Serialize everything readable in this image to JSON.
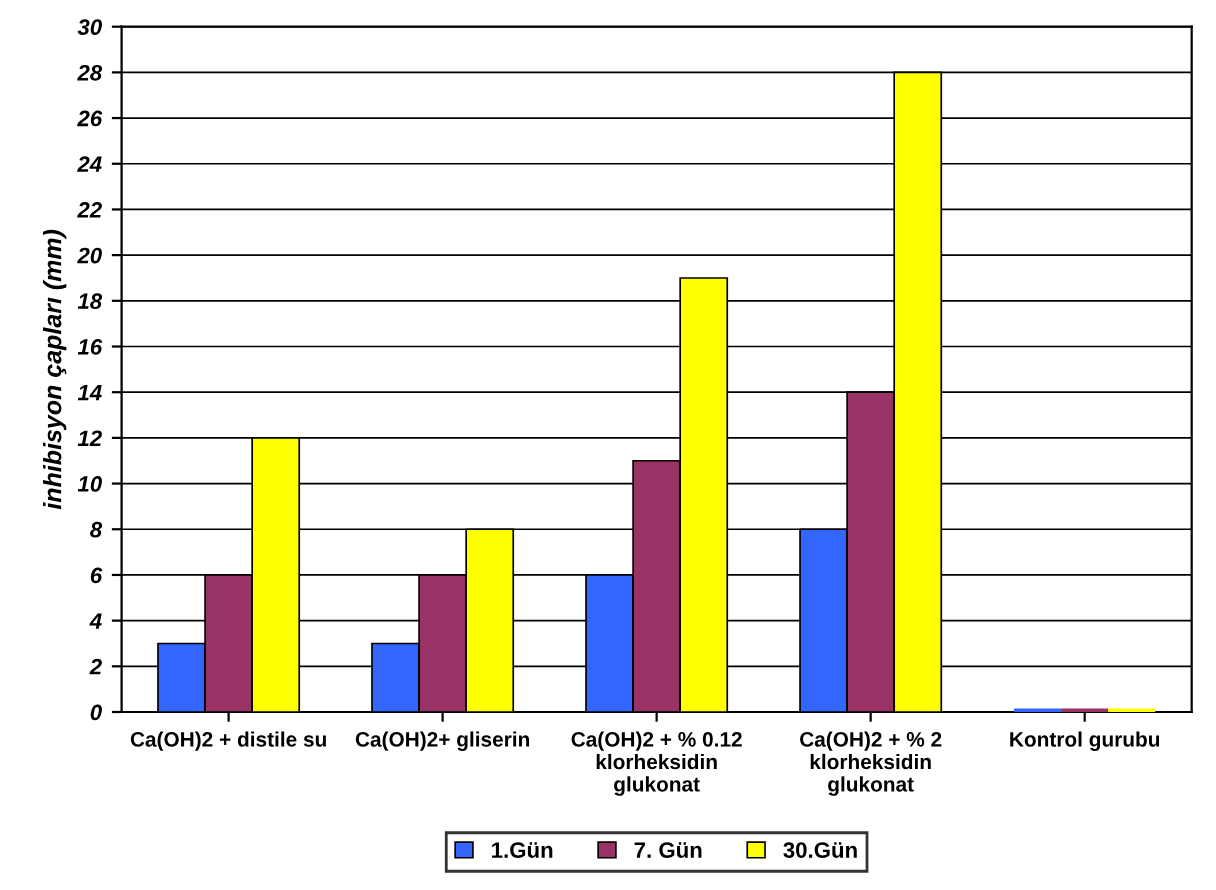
{
  "chart_data": {
    "type": "bar",
    "ylabel": "inhibisyon çapları (mm)",
    "categories": [
      "Ca(OH)2 + distile su",
      "Ca(OH)2+ gliserin",
      "Ca(OH)2 + % 0.12\nklorheksidin\nglukonat",
      "Ca(OH)2 + % 2\nklorheksidin\nglukonat",
      "Kontrol gurubu"
    ],
    "series": [
      {
        "name": "1.Gün",
        "color": "#3366ff",
        "values": [
          3,
          3,
          6,
          8,
          0
        ]
      },
      {
        "name": "7. Gün",
        "color": "#993366",
        "values": [
          6,
          6,
          11,
          14,
          0
        ]
      },
      {
        "name": "30.Gün",
        "color": "#ffff00",
        "values": [
          12,
          8,
          19,
          28,
          0
        ]
      }
    ],
    "ylim": [
      0,
      30
    ],
    "yticks": [
      0,
      2,
      4,
      6,
      8,
      10,
      12,
      14,
      16,
      18,
      20,
      22,
      24,
      26,
      28,
      30
    ],
    "grid": "y",
    "legend": "bottom"
  }
}
